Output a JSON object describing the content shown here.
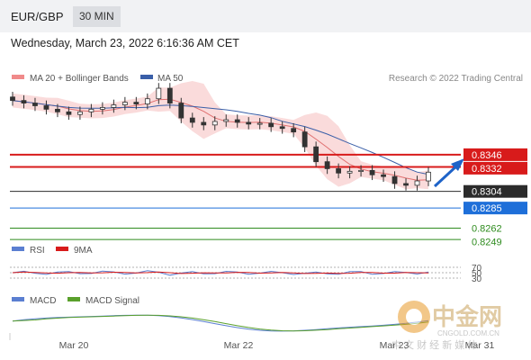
{
  "header": {
    "pair": "EUR/GBP",
    "timeframe": "30 MIN"
  },
  "timestamp": "Wednesday, March 23, 2022 6:16:36 AM CET",
  "chart_data": {
    "type": "line",
    "title": "EUR/GBP",
    "legend": [
      {
        "name": "MA 20 + Bollinger Bands",
        "color": "#f08a8a"
      },
      {
        "name": "MA 50",
        "color": "#3a5fa8"
      }
    ],
    "credit": "Research © 2022 Trading Central",
    "price_scale": [
      0.8245,
      0.842
    ],
    "price_close": [
      0.8408,
      0.8405,
      0.8402,
      0.8398,
      0.8395,
      0.8392,
      0.8395,
      0.8398,
      0.84,
      0.8403,
      0.8406,
      0.8404,
      0.841,
      0.8422,
      0.8405,
      0.8388,
      0.8383,
      0.838,
      0.8384,
      0.8386,
      0.8383,
      0.8381,
      0.8382,
      0.8378,
      0.8376,
      0.8372,
      0.8355,
      0.8338,
      0.833,
      0.8325,
      0.8327,
      0.8328,
      0.8323,
      0.8321,
      0.8313,
      0.8311,
      0.8316,
      0.8326
    ],
    "price_lines": [
      {
        "label": "0.8346",
        "value": 0.8346,
        "color": "#d81b1b"
      },
      {
        "label": "0.8332",
        "value": 0.8332,
        "color": "#d81b1b"
      },
      {
        "label": "0.8304",
        "value": 0.8304,
        "color": "#2b2b2b"
      },
      {
        "label": "0.8285",
        "value": 0.8285,
        "color": "#1e6fd9"
      },
      {
        "label": "0.8262",
        "value": 0.8262,
        "color": "#2e8b1e"
      },
      {
        "label": "0.8249",
        "value": 0.8249,
        "color": "#2e8b1e"
      }
    ],
    "rsi": {
      "legend": [
        {
          "name": "RSI",
          "color": "#5b7fd1"
        },
        {
          "name": "9MA",
          "color": "#d81b1b"
        }
      ],
      "levels": [
        "70",
        "50",
        "30"
      ],
      "range": [
        0,
        100
      ]
    },
    "macd": {
      "legend": [
        {
          "name": "MACD",
          "color": "#5b7fd1"
        },
        {
          "name": "MACD Signal",
          "color": "#5aa02c"
        }
      ]
    },
    "x_ticks": [
      "Mar 20",
      "Mar 22",
      "Mar 23",
      "Mar 31"
    ]
  },
  "watermark": {
    "name": "中金网",
    "url": "CNGOLD.COM.CN",
    "tagline": "中 文 财 经 新 媒 体"
  }
}
